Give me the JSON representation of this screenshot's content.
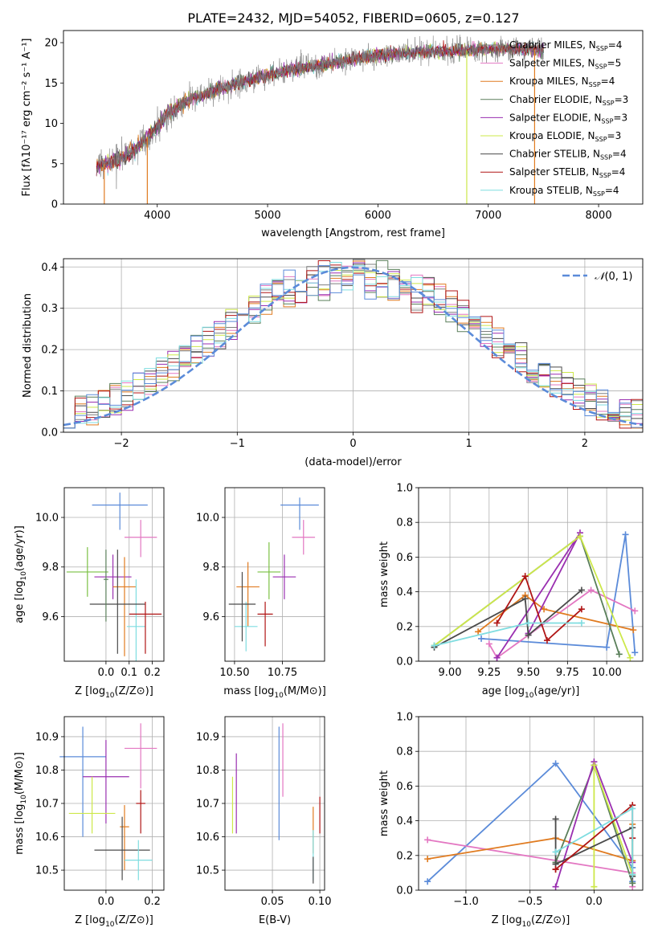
{
  "figure": {
    "title": "PLATE=2432, MJD=54052, FIBERID=0605, z=0.127"
  },
  "colors": {
    "chabrier_miles": "#7f7f7f",
    "salpeter_miles": "#e377c2",
    "kroupa_miles": "#e07b20",
    "chabrier_elodie": "#5a7f5a",
    "salpeter_elodie": "#9a2fb0",
    "kroupa_elodie": "#cde84a",
    "chabrier_stelib": "#4a4a4a",
    "salpeter_stelib": "#b01515",
    "kroupa_stelib": "#7fdde0",
    "blue": "#5b8bd9",
    "green": "#7bc043",
    "gaussian": "#5b8bd9"
  },
  "chart_data": [
    {
      "id": "spectrum",
      "type": "line",
      "title": "PLATE=2432, MJD=54052, FIBERID=0605, z=0.127",
      "xlabel": "wavelength [Angstrom, rest frame]",
      "ylabel": "Flux [fλ10⁻¹⁷ erg cm⁻² s⁻¹ A⁻¹]",
      "xlim": [
        3150,
        8400
      ],
      "ylim": [
        0,
        21.5
      ],
      "xticks": [
        4000,
        5000,
        6000,
        7000,
        8000
      ],
      "yticks": [
        0,
        5,
        10,
        15,
        20
      ],
      "legend_position": "top-right",
      "continuum": {
        "x": [
          3450,
          3550,
          3650,
          3750,
          3850,
          3950,
          4050,
          4150,
          4300,
          4500,
          4700,
          4900,
          5100,
          5300,
          5500,
          5700,
          5900,
          6100,
          6300,
          6500,
          6700,
          6900,
          7100,
          7300,
          7500
        ],
        "y": [
          4.8,
          5.0,
          5.6,
          6.2,
          7.5,
          8.8,
          10.5,
          11.8,
          13.0,
          14.0,
          14.8,
          15.6,
          16.3,
          16.8,
          17.2,
          17.8,
          18.3,
          18.5,
          18.8,
          18.9,
          19.0,
          19.1,
          19.2,
          19.2,
          19.1
        ]
      },
      "series": [
        {
          "name": "Chabrier MILES, N_SSP=4",
          "label_main": "Chabrier MILES, N",
          "label_sub": "SSP",
          "label_tail": "=4",
          "color": "#7f7f7f"
        },
        {
          "name": "Salpeter MILES, N_SSP=5",
          "label_main": "Salpeter MILES, N",
          "label_sub": "SSP",
          "label_tail": "=5",
          "color": "#e377c2"
        },
        {
          "name": "Kroupa MILES, N_SSP=4",
          "label_main": "Kroupa MILES, N",
          "label_sub": "SSP",
          "label_tail": "=4",
          "color": "#e07b20"
        },
        {
          "name": "Chabrier ELODIE, N_SSP=3",
          "label_main": "Chabrier ELODIE, N",
          "label_sub": "SSP",
          "label_tail": "=3",
          "color": "#5a7f5a"
        },
        {
          "name": "Salpeter ELODIE, N_SSP=3",
          "label_main": "Salpeter ELODIE, N",
          "label_sub": "SSP",
          "label_tail": "=3",
          "color": "#9a2fb0"
        },
        {
          "name": "Kroupa ELODIE, N_SSP=3",
          "label_main": "Kroupa ELODIE, N",
          "label_sub": "SSP",
          "label_tail": "=3",
          "color": "#cde84a"
        },
        {
          "name": "Chabrier STELIB, N_SSP=4",
          "label_main": "Chabrier STELIB, N",
          "label_sub": "SSP",
          "label_tail": "=4",
          "color": "#4a4a4a"
        },
        {
          "name": "Salpeter STELIB, N_SSP=4",
          "label_main": "Salpeter STELIB, N",
          "label_sub": "SSP",
          "label_tail": "=4",
          "color": "#b01515"
        },
        {
          "name": "Kroupa STELIB, N_SSP=4",
          "label_main": "Kroupa STELIB, N",
          "label_sub": "SSP",
          "label_tail": "=4",
          "color": "#7fdde0"
        }
      ]
    },
    {
      "id": "residuals",
      "type": "histogram",
      "xlabel": "(data-model)/error",
      "ylabel": "Normed distribution",
      "xlim": [
        -2.5,
        2.5
      ],
      "ylim": [
        0,
        0.42
      ],
      "xticks": [
        -2,
        -1,
        0,
        1,
        2
      ],
      "yticks": [
        0.0,
        0.1,
        0.2,
        0.3,
        0.4
      ],
      "grid": true,
      "legend_position": "top-right",
      "gaussian_label": "N(0,1)",
      "gaussian_label_script": "𝒩",
      "gaussian_label_rest": "(0, 1)",
      "bin_width": 0.1,
      "bins_from": -2.5,
      "hist_colors": [
        "#7f7f7f",
        "#e377c2",
        "#e07b20",
        "#5a7f5a",
        "#9a2fb0",
        "#cde84a",
        "#4a4a4a",
        "#b01515",
        "#7fdde0",
        "#5b8bd9"
      ]
    },
    {
      "id": "age-vs-z",
      "type": "errorbar",
      "xlabel": "Z [log10(Z/Z⊙)]",
      "xlabel_main": "Z [log",
      "xlabel_sub": "10",
      "xlabel_tail": "(Z/Z⊙)]",
      "ylabel": "age [log10(age/yr)]",
      "ylabel_main": "age  [log",
      "ylabel_sub": "10",
      "ylabel_tail": "(age/yr)]",
      "xlim": [
        -0.18,
        0.25
      ],
      "ylim": [
        9.42,
        10.12
      ],
      "xticks": [
        0.0,
        0.1,
        0.2
      ],
      "yticks": [
        9.6,
        9.8,
        10.0
      ],
      "grid": true,
      "points": [
        {
          "x": 0.06,
          "xerr": 0.12,
          "y": 10.05,
          "yerr": [
            0.1,
            0.05
          ],
          "color": "#5b8bd9"
        },
        {
          "x": 0.15,
          "xerr": 0.07,
          "y": 9.92,
          "yerr": [
            0.08,
            0.07
          ],
          "color": "#e377c2"
        },
        {
          "x": -0.08,
          "xerr": 0.09,
          "y": 9.78,
          "yerr": [
            0.1,
            0.1
          ],
          "color": "#7bc043"
        },
        {
          "x": 0.03,
          "xerr": 0.08,
          "y": 9.76,
          "yerr": [
            0.09,
            0.09
          ],
          "color": "#9a2fb0"
        },
        {
          "x": 0.08,
          "xerr": 0.05,
          "y": 9.72,
          "yerr": [
            0.28,
            0.12
          ],
          "color": "#e07b20"
        },
        {
          "x": 0.13,
          "xerr": 0.04,
          "y": 9.56,
          "yerr": [
            0.14,
            0.19
          ],
          "color": "#7fdde0"
        },
        {
          "x": 0.05,
          "xerr": 0.12,
          "y": 9.65,
          "yerr": [
            0.2,
            0.22
          ],
          "color": "#4a4a4a"
        },
        {
          "x": 0.17,
          "xerr": 0.07,
          "y": 9.61,
          "yerr": [
            0.16,
            0.05
          ],
          "color": "#b01515"
        },
        {
          "x": 0.0,
          "xerr": 0.01,
          "y": 9.75,
          "yerr": [
            0.17,
            0.12
          ],
          "color": "#5a7f5a"
        }
      ]
    },
    {
      "id": "age-vs-mass",
      "type": "errorbar",
      "xlabel": "mass [log10(M/M⊙)]",
      "xlabel_main": "mass [log",
      "xlabel_sub": "10",
      "xlabel_tail": "(M/M⊙)]",
      "xlim": [
        10.45,
        10.97
      ],
      "ylim": [
        9.42,
        10.12
      ],
      "xticks": [
        10.5,
        10.75
      ],
      "yticks": [
        9.6,
        9.8,
        10.0
      ],
      "grid": true,
      "points": [
        {
          "x": 10.84,
          "xerr": 0.1,
          "y": 10.05,
          "yerr": [
            0.1,
            0.03
          ],
          "color": "#5b8bd9"
        },
        {
          "x": 10.86,
          "xerr": 0.06,
          "y": 9.92,
          "yerr": [
            0.07,
            0.07
          ],
          "color": "#e377c2"
        },
        {
          "x": 10.68,
          "xerr": 0.06,
          "y": 9.78,
          "yerr": [
            0.11,
            0.12
          ],
          "color": "#7bc043"
        },
        {
          "x": 10.76,
          "xerr": 0.06,
          "y": 9.76,
          "yerr": [
            0.09,
            0.09
          ],
          "color": "#9a2fb0"
        },
        {
          "x": 10.57,
          "xerr": 0.06,
          "y": 9.72,
          "yerr": [
            0.16,
            0.1
          ],
          "color": "#e07b20"
        },
        {
          "x": 10.56,
          "xerr": 0.06,
          "y": 9.56,
          "yerr": [
            0.1,
            0.1
          ],
          "color": "#7fdde0"
        },
        {
          "x": 10.54,
          "xerr": 0.07,
          "y": 9.65,
          "yerr": [
            0.15,
            0.13
          ],
          "color": "#4a4a4a"
        },
        {
          "x": 10.66,
          "xerr": 0.04,
          "y": 9.61,
          "yerr": [
            0.13,
            0.05
          ],
          "color": "#b01515"
        }
      ]
    },
    {
      "id": "weight-vs-age",
      "type": "line",
      "xlabel": "age [log10(age/yr)]",
      "xlabel_main": "age  [log",
      "xlabel_sub": "10",
      "xlabel_tail": "(age/yr)]",
      "ylabel": "mass weight",
      "xlim": [
        8.8,
        10.23
      ],
      "ylim": [
        0.0,
        1.0
      ],
      "xticks": [
        9.0,
        9.25,
        9.5,
        9.75,
        10.0
      ],
      "xtick_labels": [
        "9.00",
        "9.25",
        "9.50",
        "9.75",
        "10.00"
      ],
      "yticks": [
        0.0,
        0.2,
        0.4,
        0.6,
        0.8,
        1.0
      ],
      "grid": true,
      "series": [
        {
          "color": "#5b8bd9",
          "x": [
            9.2,
            10.0,
            10.12,
            10.18
          ],
          "y": [
            0.13,
            0.08,
            0.73,
            0.05
          ]
        },
        {
          "color": "#e377c2",
          "x": [
            9.25,
            9.3,
            9.9,
            10.18
          ],
          "y": [
            0.1,
            0.02,
            0.41,
            0.29
          ]
        },
        {
          "color": "#e07b20",
          "x": [
            9.18,
            9.48,
            9.6,
            10.17
          ],
          "y": [
            0.17,
            0.38,
            0.3,
            0.18
          ]
        },
        {
          "color": "#5a7f5a",
          "x": [
            8.9,
            9.83,
            10.08
          ],
          "y": [
            0.09,
            0.72,
            0.04
          ]
        },
        {
          "color": "#9a2fb0",
          "x": [
            9.3,
            9.83,
            9.5
          ],
          "y": [
            0.02,
            0.74,
            0.16
          ]
        },
        {
          "color": "#cde84a",
          "x": [
            8.9,
            9.83,
            10.15
          ],
          "y": [
            0.09,
            0.72,
            0.02
          ]
        },
        {
          "color": "#4a4a4a",
          "x": [
            8.9,
            9.48,
            9.5,
            9.84
          ],
          "y": [
            0.08,
            0.36,
            0.15,
            0.41
          ]
        },
        {
          "color": "#b01515",
          "x": [
            9.3,
            9.48,
            9.62,
            9.84
          ],
          "y": [
            0.22,
            0.49,
            0.12,
            0.3
          ]
        },
        {
          "color": "#7fdde0",
          "x": [
            8.9,
            9.5,
            9.84
          ],
          "y": [
            0.09,
            0.22,
            0.22
          ]
        }
      ]
    },
    {
      "id": "mass-vs-z",
      "type": "errorbar",
      "xlabel": "Z [log10(Z/Z⊙)]",
      "xlabel_main": "Z [log",
      "xlabel_sub": "10",
      "xlabel_tail": "(Z/Z⊙)]",
      "ylabel": "mass [log10(M/M⊙)]",
      "ylabel_main": "mass [log",
      "ylabel_sub": "10",
      "ylabel_tail": "(M/M⊙)]",
      "xlim": [
        -0.18,
        0.25
      ],
      "ylim": [
        10.44,
        10.96
      ],
      "xticks": [
        0.0,
        0.2
      ],
      "yticks": [
        10.5,
        10.6,
        10.7,
        10.8,
        10.9
      ],
      "grid": true,
      "points": [
        {
          "x": -0.1,
          "xerr": 0.1,
          "y": 10.84,
          "yerr": [
            0.24,
            0.09
          ],
          "color": "#5b8bd9"
        },
        {
          "x": 0.15,
          "xerr": 0.07,
          "y": 10.865,
          "yerr": [
            0.12,
            0.075
          ],
          "color": "#e377c2"
        },
        {
          "x": 0.0,
          "xerr": 0.1,
          "y": 10.78,
          "yerr": [
            0.14,
            0.11
          ],
          "color": "#9a2fb0"
        },
        {
          "x": -0.06,
          "xerr": 0.1,
          "y": 10.67,
          "yerr": [
            0.06,
            0.11
          ],
          "color": "#cde84a"
        },
        {
          "x": 0.08,
          "xerr": 0.02,
          "y": 10.63,
          "yerr": [
            0.13,
            0.065
          ],
          "color": "#e07b20"
        },
        {
          "x": 0.15,
          "xerr": 0.02,
          "y": 10.7,
          "yerr": [
            0.09,
            0.04
          ],
          "color": "#b01515"
        },
        {
          "x": 0.07,
          "xerr": 0.12,
          "y": 10.56,
          "yerr": [
            0.09,
            0.1
          ],
          "color": "#4a4a4a"
        },
        {
          "x": 0.14,
          "xerr": 0.06,
          "y": 10.53,
          "yerr": [
            0.06,
            0.06
          ],
          "color": "#7fdde0"
        }
      ]
    },
    {
      "id": "mass-vs-ebv",
      "type": "errorbar",
      "xlabel": "E(B-V)",
      "xlim": [
        0.0,
        0.105
      ],
      "ylim": [
        10.44,
        10.96
      ],
      "xticks": [
        0.05,
        0.1
      ],
      "xtick_labels": [
        "0.05",
        "0.10"
      ],
      "yticks": [
        10.5,
        10.6,
        10.7,
        10.8,
        10.9
      ],
      "grid": true,
      "points": [
        {
          "x": 0.012,
          "y": 10.75,
          "yerr": [
            0.14,
            0.1
          ],
          "color": "#9a2fb0"
        },
        {
          "x": 0.008,
          "y": 10.68,
          "yerr": [
            0.07,
            0.1
          ],
          "color": "#cde84a"
        },
        {
          "x": 0.057,
          "y": 10.75,
          "yerr": [
            0.16,
            0.18
          ],
          "color": "#5b8bd9"
        },
        {
          "x": 0.061,
          "y": 10.83,
          "yerr": [
            0.11,
            0.11
          ],
          "color": "#e377c2"
        },
        {
          "x": 0.093,
          "y": 10.62,
          "yerr": [
            0.07,
            0.07
          ],
          "color": "#e07b20"
        },
        {
          "x": 0.1,
          "y": 10.67,
          "yerr": [
            0.06,
            0.05
          ],
          "color": "#b01515"
        },
        {
          "x": 0.093,
          "y": 10.54,
          "yerr": [
            0.07,
            0.08
          ],
          "color": "#7fdde0"
        },
        {
          "x": 0.093,
          "y": 10.54,
          "yerr": [
            0.08,
            0.0
          ],
          "color": "#4a4a4a"
        }
      ]
    },
    {
      "id": "weight-vs-z",
      "type": "line",
      "xlabel": "Z [log10(Z/Z⊙)]",
      "xlabel_main": "Z [log",
      "xlabel_sub": "10",
      "xlabel_tail": "(Z/Z⊙)]",
      "ylabel": "mass weight",
      "xlim": [
        -1.37,
        0.38
      ],
      "ylim": [
        0.0,
        1.0
      ],
      "xticks": [
        -1.0,
        -0.5,
        0.0
      ],
      "xtick_labels": [
        "−1.0",
        "−0.5",
        "0.0"
      ],
      "yticks": [
        0.0,
        0.2,
        0.4,
        0.6,
        0.8,
        1.0
      ],
      "grid": true,
      "series": [
        {
          "color": "#5b8bd9",
          "x": [
            -1.3,
            -0.3,
            0.3,
            0.3
          ],
          "y": [
            0.05,
            0.73,
            0.13,
            0.05
          ]
        },
        {
          "color": "#e377c2",
          "x": [
            -1.3,
            0.3,
            0.3
          ],
          "y": [
            0.29,
            0.1,
            0.02
          ]
        },
        {
          "color": "#e07b20",
          "x": [
            -1.3,
            -0.3,
            0.3,
            0.3
          ],
          "y": [
            0.18,
            0.3,
            0.17,
            0.38
          ]
        },
        {
          "color": "#5a7f5a",
          "x": [
            -0.3,
            0.0,
            0.3
          ],
          "y": [
            0.16,
            0.72,
            0.04
          ]
        },
        {
          "color": "#9a2fb0",
          "x": [
            -0.3,
            0.0,
            0.3
          ],
          "y": [
            0.02,
            0.74,
            0.16
          ]
        },
        {
          "color": "#cde84a",
          "x": [
            0.0,
            0.0,
            0.3
          ],
          "y": [
            0.02,
            0.72,
            0.09
          ]
        },
        {
          "color": "#4a4a4a",
          "x": [
            -0.3,
            -0.3,
            0.3,
            0.3
          ],
          "y": [
            0.41,
            0.15,
            0.36,
            0.08
          ]
        },
        {
          "color": "#b01515",
          "x": [
            -0.3,
            -0.3,
            0.3,
            0.3
          ],
          "y": [
            0.12,
            0.12,
            0.49,
            0.3
          ]
        },
        {
          "color": "#7fdde0",
          "x": [
            -0.3,
            0.3,
            0.3
          ],
          "y": [
            0.22,
            0.47,
            0.09
          ]
        }
      ]
    }
  ]
}
